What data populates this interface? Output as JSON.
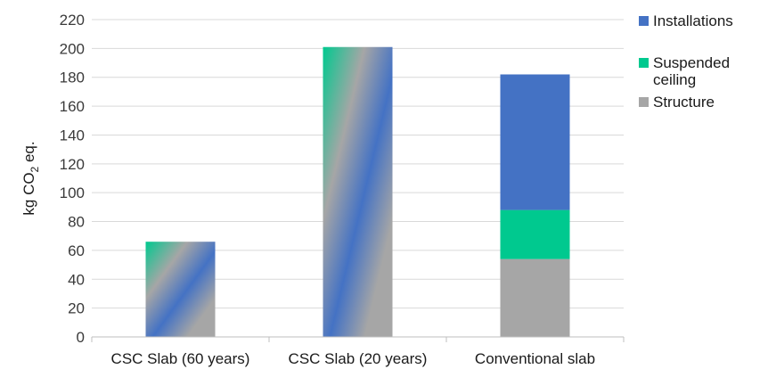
{
  "chart_data": {
    "type": "bar",
    "stacked": true,
    "title": "",
    "xlabel": "",
    "ylabel": "kg CO2 eq.",
    "ylabel_parts": {
      "pre": "kg CO",
      "sub": "2",
      "post": " eq."
    },
    "ylim": [
      0,
      220
    ],
    "yticks": [
      0,
      20,
      40,
      60,
      80,
      100,
      120,
      140,
      160,
      180,
      200,
      220
    ],
    "grid": true,
    "legend_position": "right",
    "categories": [
      "CSC Slab (60 years)",
      "CSC Slab (20 years)",
      "Conventional slab"
    ],
    "series": [
      {
        "name": "Structure",
        "values": [
          66,
          201,
          54
        ],
        "color": "#a6a6a6"
      },
      {
        "name": "Suspended ceiling",
        "values": [
          0,
          0,
          34
        ],
        "color": "#00c98f"
      },
      {
        "name": "Installations",
        "values": [
          0,
          0,
          94
        ],
        "color": "#4472c4"
      }
    ],
    "legend": [
      {
        "label": "Installations",
        "color": "#4472c4"
      },
      {
        "label": "Suspended\nceiling",
        "color": "#00c98f"
      },
      {
        "label": "Structure",
        "color": "#a6a6a6"
      }
    ],
    "blended_bars": [
      true,
      true,
      false
    ]
  }
}
